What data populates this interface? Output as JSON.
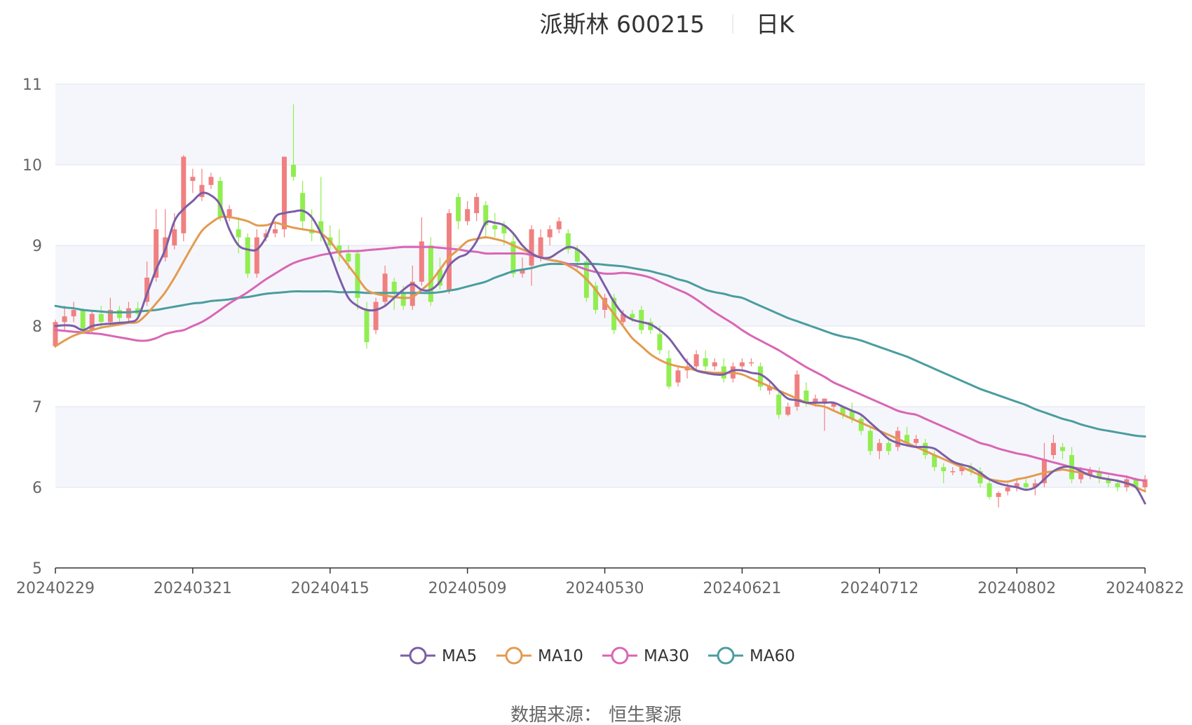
{
  "title": "派斯林 600215",
  "subtitle": "日K",
  "source_label": "数据来源：",
  "source_value": "恒生聚源",
  "colors": {
    "up": "#f08080",
    "down": "#90ee50",
    "grid": "#dfe3f2",
    "band": "#f5f6fb",
    "axis": "#333333",
    "MA5": "#7b5ea7",
    "MA10": "#e39b4e",
    "MA30": "#d966b5",
    "MA60": "#4a9d9f"
  },
  "chart_data": {
    "type": "candlestick",
    "y_ticks": [
      "5",
      "6",
      "7",
      "8",
      "9",
      "10",
      "11"
    ],
    "ylim": [
      5,
      11
    ],
    "x_tick_labels": [
      "20240229",
      "20240321",
      "20240415",
      "20240509",
      "20240530",
      "20240621",
      "20240712",
      "20240802",
      "20240822"
    ],
    "x_tick_index": [
      0,
      15,
      30,
      45,
      60,
      75,
      90,
      105,
      119
    ],
    "n_bars": 120,
    "legend": [
      "MA5",
      "MA10",
      "MA30",
      "MA60"
    ],
    "legend_position": "bottom-center",
    "candles": [
      [
        7.75,
        8.05,
        8.08,
        7.73
      ],
      [
        8.05,
        8.12,
        8.25,
        7.95
      ],
      [
        8.12,
        8.2,
        8.3,
        8.05
      ],
      [
        8.2,
        7.95,
        8.22,
        7.9
      ],
      [
        7.95,
        8.15,
        8.2,
        7.9
      ],
      [
        8.15,
        8.05,
        8.25,
        7.98
      ],
      [
        8.05,
        8.2,
        8.35,
        8.0
      ],
      [
        8.2,
        8.1,
        8.25,
        8.02
      ],
      [
        8.1,
        8.22,
        8.3,
        8.05
      ],
      [
        8.22,
        8.15,
        8.3,
        8.08
      ],
      [
        8.3,
        8.6,
        8.8,
        8.25
      ],
      [
        8.6,
        9.2,
        9.45,
        8.55
      ],
      [
        8.85,
        9.1,
        9.45,
        8.8
      ],
      [
        9.0,
        9.2,
        9.4,
        8.95
      ],
      [
        9.15,
        10.1,
        10.12,
        9.05
      ],
      [
        9.8,
        9.85,
        9.95,
        9.65
      ],
      [
        9.6,
        9.75,
        9.95,
        9.55
      ],
      [
        9.75,
        9.85,
        9.9,
        9.7
      ],
      [
        9.8,
        9.35,
        9.85,
        9.3
      ],
      [
        9.35,
        9.45,
        9.5,
        9.3
      ],
      [
        9.2,
        9.1,
        9.35,
        8.9
      ],
      [
        9.1,
        8.65,
        9.15,
        8.6
      ],
      [
        8.65,
        9.1,
        9.2,
        8.6
      ],
      [
        9.1,
        9.15,
        9.2,
        9.05
      ],
      [
        9.15,
        9.2,
        9.3,
        9.1
      ],
      [
        9.2,
        10.1,
        10.1,
        9.1
      ],
      [
        10.0,
        9.85,
        10.75,
        9.8
      ],
      [
        9.65,
        9.3,
        9.8,
        9.2
      ],
      [
        9.2,
        9.15,
        9.45,
        9.05
      ],
      [
        9.3,
        9.15,
        9.85,
        9.05
      ],
      [
        9.1,
        9.0,
        9.25,
        8.95
      ],
      [
        9.0,
        8.9,
        9.2,
        8.8
      ],
      [
        8.9,
        8.8,
        9.0,
        8.7
      ],
      [
        8.9,
        8.35,
        8.95,
        8.2
      ],
      [
        8.2,
        7.8,
        8.3,
        7.72
      ],
      [
        7.95,
        8.3,
        8.35,
        7.9
      ],
      [
        8.3,
        8.65,
        8.75,
        8.25
      ],
      [
        8.55,
        8.4,
        8.6,
        8.2
      ],
      [
        8.4,
        8.25,
        8.5,
        8.2
      ],
      [
        8.25,
        8.55,
        8.75,
        8.2
      ],
      [
        8.55,
        9.05,
        9.35,
        8.5
      ],
      [
        9.0,
        8.3,
        9.1,
        8.25
      ],
      [
        8.7,
        8.5,
        8.85,
        8.45
      ],
      [
        8.45,
        9.4,
        9.45,
        8.4
      ],
      [
        9.6,
        9.3,
        9.65,
        9.2
      ],
      [
        9.3,
        9.45,
        9.55,
        9.25
      ],
      [
        9.4,
        9.6,
        9.65,
        9.3
      ],
      [
        9.5,
        9.25,
        9.55,
        9.1
      ],
      [
        9.25,
        9.2,
        9.4,
        9.1
      ],
      [
        9.25,
        9.15,
        9.3,
        9.0
      ],
      [
        9.05,
        8.65,
        9.15,
        8.6
      ],
      [
        8.65,
        8.7,
        8.85,
        8.6
      ],
      [
        8.75,
        9.2,
        9.25,
        8.5
      ],
      [
        8.85,
        9.1,
        9.2,
        8.8
      ],
      [
        9.1,
        9.2,
        9.25,
        9.0
      ],
      [
        9.2,
        9.3,
        9.35,
        9.15
      ],
      [
        9.15,
        8.95,
        9.2,
        8.9
      ],
      [
        8.95,
        8.8,
        9.0,
        8.7
      ],
      [
        8.8,
        8.35,
        8.85,
        8.3
      ],
      [
        8.5,
        8.2,
        8.55,
        8.15
      ],
      [
        8.2,
        8.35,
        8.4,
        8.1
      ],
      [
        8.35,
        7.95,
        8.4,
        7.9
      ],
      [
        8.05,
        8.15,
        8.2,
        8.0
      ],
      [
        8.15,
        8.1,
        8.2,
        8.05
      ],
      [
        8.2,
        7.95,
        8.25,
        7.9
      ],
      [
        8.05,
        7.95,
        8.1,
        7.9
      ],
      [
        7.9,
        7.7,
        8.0,
        7.65
      ],
      [
        7.6,
        7.25,
        7.7,
        7.22
      ],
      [
        7.3,
        7.45,
        7.5,
        7.25
      ],
      [
        7.45,
        7.5,
        7.6,
        7.35
      ],
      [
        7.5,
        7.65,
        7.7,
        7.45
      ],
      [
        7.6,
        7.5,
        7.7,
        7.45
      ],
      [
        7.5,
        7.55,
        7.6,
        7.45
      ],
      [
        7.5,
        7.35,
        7.6,
        7.3
      ],
      [
        7.35,
        7.5,
        7.55,
        7.3
      ],
      [
        7.5,
        7.55,
        7.6,
        7.45
      ],
      [
        7.55,
        7.55,
        7.6,
        7.5
      ],
      [
        7.5,
        7.25,
        7.55,
        7.2
      ],
      [
        7.2,
        7.25,
        7.3,
        7.15
      ],
      [
        7.15,
        6.9,
        7.2,
        6.85
      ],
      [
        6.9,
        7.0,
        7.05,
        6.88
      ],
      [
        7.0,
        7.4,
        7.45,
        6.95
      ],
      [
        7.2,
        7.05,
        7.3,
        7.0
      ],
      [
        7.05,
        7.1,
        7.15,
        7.0
      ],
      [
        7.05,
        7.1,
        7.1,
        6.7
      ],
      [
        7.0,
        7.05,
        7.05,
        6.95
      ],
      [
        7.0,
        6.9,
        7.0,
        6.85
      ],
      [
        6.95,
        6.85,
        7.05,
        6.8
      ],
      [
        6.85,
        6.7,
        6.9,
        6.65
      ],
      [
        6.7,
        6.45,
        6.75,
        6.4
      ],
      [
        6.45,
        6.55,
        6.6,
        6.35
      ],
      [
        6.55,
        6.45,
        6.6,
        6.4
      ],
      [
        6.5,
        6.7,
        6.75,
        6.45
      ],
      [
        6.65,
        6.55,
        6.75,
        6.5
      ],
      [
        6.55,
        6.6,
        6.65,
        6.5
      ],
      [
        6.55,
        6.4,
        6.6,
        6.35
      ],
      [
        6.4,
        6.25,
        6.45,
        6.2
      ],
      [
        6.25,
        6.2,
        6.3,
        6.05
      ],
      [
        6.2,
        6.2,
        6.25,
        6.15
      ],
      [
        6.2,
        6.25,
        6.3,
        6.15
      ],
      [
        6.25,
        6.2,
        6.3,
        6.15
      ],
      [
        6.2,
        6.05,
        6.25,
        6.0
      ],
      [
        6.05,
        5.88,
        6.1,
        5.85
      ],
      [
        5.88,
        5.93,
        5.95,
        5.75
      ],
      [
        5.95,
        6.0,
        6.05,
        5.9
      ],
      [
        6.0,
        6.05,
        6.1,
        5.95
      ],
      [
        6.05,
        6.0,
        6.1,
        5.95
      ],
      [
        6.0,
        6.05,
        6.1,
        5.9
      ],
      [
        6.05,
        6.35,
        6.55,
        6.0
      ],
      [
        6.4,
        6.55,
        6.65,
        6.35
      ],
      [
        6.5,
        6.45,
        6.55,
        6.35
      ],
      [
        6.4,
        6.1,
        6.5,
        6.05
      ],
      [
        6.1,
        6.2,
        6.25,
        6.05
      ],
      [
        6.15,
        6.2,
        6.25,
        6.1
      ],
      [
        6.2,
        6.12,
        6.25,
        6.05
      ],
      [
        6.1,
        6.05,
        6.15,
        6.0
      ],
      [
        6.05,
        6.0,
        6.1,
        5.95
      ],
      [
        6.0,
        6.1,
        6.15,
        5.95
      ],
      [
        6.1,
        6.0,
        6.12,
        5.98
      ],
      [
        6.0,
        6.1,
        6.15,
        5.95
      ]
    ],
    "series": [
      {
        "name": "MA5",
        "values": [
          8.0,
          8.01,
          8.0,
          7.95,
          8.0,
          8.02,
          8.03,
          8.04,
          8.05,
          8.1,
          8.4,
          8.7,
          8.95,
          9.3,
          9.45,
          9.55,
          9.65,
          9.62,
          9.5,
          9.2,
          9.0,
          8.95,
          8.95,
          9.1,
          9.35,
          9.4,
          9.42,
          9.43,
          9.35,
          9.15,
          8.9,
          8.6,
          8.35,
          8.25,
          8.2,
          8.2,
          8.25,
          8.35,
          8.45,
          8.52,
          8.45,
          8.45,
          8.55,
          8.75,
          8.85,
          8.9,
          9.05,
          9.28,
          9.28,
          9.25,
          9.15,
          9.0,
          8.9,
          8.85,
          8.85,
          8.92,
          8.98,
          8.95,
          8.85,
          8.7,
          8.5,
          8.3,
          8.15,
          8.08,
          8.05,
          8.02,
          7.95,
          7.85,
          7.7,
          7.55,
          7.45,
          7.42,
          7.4,
          7.4,
          7.45,
          7.45,
          7.42,
          7.4,
          7.32,
          7.2,
          7.1,
          7.08,
          7.05,
          7.05,
          7.05,
          7.05,
          7.0,
          6.95,
          6.9,
          6.8,
          6.7,
          6.6,
          6.55,
          6.52,
          6.5,
          6.5,
          6.48,
          6.4,
          6.32,
          6.28,
          6.25,
          6.18,
          6.1,
          6.05,
          6.02,
          6.0,
          5.97,
          6.0,
          6.1,
          6.2,
          6.25,
          6.25,
          6.2,
          6.15,
          6.12,
          6.1,
          6.08,
          6.05,
          6.0,
          5.8
        ]
      },
      {
        "name": "MA10",
        "values": [
          7.75,
          7.82,
          7.88,
          7.92,
          7.95,
          7.98,
          8.0,
          8.02,
          8.04,
          8.05,
          8.15,
          8.28,
          8.42,
          8.6,
          8.8,
          9.0,
          9.18,
          9.28,
          9.35,
          9.35,
          9.33,
          9.3,
          9.25,
          9.25,
          9.28,
          9.25,
          9.22,
          9.2,
          9.18,
          9.15,
          9.05,
          8.9,
          8.75,
          8.6,
          8.45,
          8.4,
          8.38,
          8.36,
          8.35,
          8.36,
          8.45,
          8.55,
          8.7,
          8.85,
          8.95,
          9.05,
          9.08,
          9.1,
          9.08,
          9.05,
          9.0,
          8.95,
          8.9,
          8.85,
          8.82,
          8.8,
          8.75,
          8.68,
          8.58,
          8.45,
          8.3,
          8.15,
          8.0,
          7.85,
          7.75,
          7.65,
          7.58,
          7.53,
          7.5,
          7.48,
          7.45,
          7.43,
          7.42,
          7.42,
          7.42,
          7.4,
          7.35,
          7.3,
          7.25,
          7.2,
          7.15,
          7.1,
          7.05,
          7.02,
          7.0,
          6.95,
          6.9,
          6.85,
          6.8,
          6.75,
          6.7,
          6.65,
          6.6,
          6.55,
          6.5,
          6.45,
          6.4,
          6.35,
          6.3,
          6.25,
          6.2,
          6.15,
          6.1,
          6.08,
          6.07,
          6.1,
          6.12,
          6.15,
          6.18,
          6.2,
          6.22,
          6.2,
          6.18,
          6.15,
          6.12,
          6.1,
          6.08,
          6.05,
          6.0,
          5.95
        ]
      },
      {
        "name": "MA30",
        "values": [
          7.95,
          7.94,
          7.93,
          7.92,
          7.91,
          7.9,
          7.88,
          7.86,
          7.84,
          7.82,
          7.82,
          7.85,
          7.9,
          7.93,
          7.95,
          8.0,
          8.05,
          8.12,
          8.2,
          8.28,
          8.35,
          8.42,
          8.5,
          8.58,
          8.65,
          8.72,
          8.78,
          8.82,
          8.85,
          8.88,
          8.9,
          8.92,
          8.93,
          8.93,
          8.94,
          8.95,
          8.96,
          8.97,
          8.98,
          8.98,
          8.98,
          8.98,
          8.97,
          8.96,
          8.95,
          8.93,
          8.92,
          8.9,
          8.9,
          8.9,
          8.9,
          8.9,
          8.88,
          8.85,
          8.82,
          8.8,
          8.77,
          8.74,
          8.7,
          8.67,
          8.65,
          8.65,
          8.66,
          8.65,
          8.63,
          8.6,
          8.55,
          8.5,
          8.45,
          8.4,
          8.33,
          8.25,
          8.17,
          8.1,
          8.03,
          7.95,
          7.88,
          7.82,
          7.76,
          7.7,
          7.63,
          7.56,
          7.49,
          7.43,
          7.37,
          7.3,
          7.25,
          7.2,
          7.15,
          7.1,
          7.05,
          7.0,
          6.95,
          6.92,
          6.9,
          6.85,
          6.8,
          6.75,
          6.7,
          6.65,
          6.6,
          6.55,
          6.52,
          6.48,
          6.45,
          6.42,
          6.4,
          6.37,
          6.34,
          6.31,
          6.28,
          6.25,
          6.23,
          6.21,
          6.19,
          6.17,
          6.15,
          6.13,
          6.1,
          6.08
        ]
      },
      {
        "name": "MA60",
        "values": [
          8.25,
          8.23,
          8.22,
          8.2,
          8.19,
          8.18,
          8.17,
          8.17,
          8.17,
          8.18,
          8.19,
          8.2,
          8.22,
          8.24,
          8.26,
          8.28,
          8.29,
          8.31,
          8.32,
          8.33,
          8.35,
          8.36,
          8.38,
          8.4,
          8.41,
          8.42,
          8.43,
          8.43,
          8.43,
          8.43,
          8.43,
          8.42,
          8.42,
          8.42,
          8.41,
          8.41,
          8.41,
          8.41,
          8.41,
          8.41,
          8.41,
          8.41,
          8.42,
          8.44,
          8.46,
          8.49,
          8.52,
          8.55,
          8.6,
          8.64,
          8.68,
          8.7,
          8.72,
          8.75,
          8.77,
          8.77,
          8.77,
          8.77,
          8.77,
          8.77,
          8.76,
          8.75,
          8.74,
          8.72,
          8.7,
          8.68,
          8.65,
          8.62,
          8.58,
          8.55,
          8.5,
          8.45,
          8.42,
          8.4,
          8.37,
          8.35,
          8.3,
          8.25,
          8.2,
          8.15,
          8.1,
          8.06,
          8.02,
          7.98,
          7.94,
          7.9,
          7.87,
          7.85,
          7.82,
          7.78,
          7.74,
          7.7,
          7.66,
          7.62,
          7.57,
          7.52,
          7.47,
          7.42,
          7.37,
          7.32,
          7.27,
          7.22,
          7.18,
          7.14,
          7.1,
          7.06,
          7.02,
          6.97,
          6.93,
          6.89,
          6.85,
          6.82,
          6.78,
          6.75,
          6.72,
          6.7,
          6.68,
          6.66,
          6.64,
          6.63
        ]
      }
    ]
  }
}
